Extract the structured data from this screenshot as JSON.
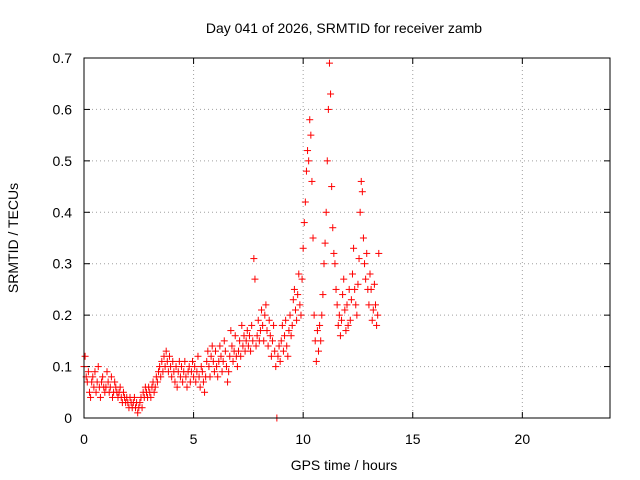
{
  "chart_data": {
    "type": "scatter",
    "title": "Day 041 of 2026, SRMTID for receiver zamb",
    "xlabel": "GPS time / hours",
    "ylabel": "SRMTID / TECUs",
    "xlim": [
      0,
      24
    ],
    "ylim": [
      0,
      0.7
    ],
    "x_ticks": [
      0,
      5,
      10,
      15,
      20
    ],
    "x_tick_labels": [
      "0",
      "5",
      "10",
      "15",
      "20"
    ],
    "y_ticks": [
      0,
      0.1,
      0.2,
      0.3,
      0.4,
      0.5,
      0.6,
      0.7
    ],
    "y_tick_labels": [
      "0",
      "0.1",
      "0.2",
      "0.3",
      "0.4",
      "0.5",
      "0.6",
      "0.7"
    ],
    "grid": true,
    "marker": "+",
    "marker_color": "#ff0000",
    "series": [
      {
        "name": "SRMTID",
        "points": [
          [
            0.0,
            0.1
          ],
          [
            0.05,
            0.12
          ],
          [
            0.1,
            0.08
          ],
          [
            0.15,
            0.07
          ],
          [
            0.2,
            0.09
          ],
          [
            0.25,
            0.05
          ],
          [
            0.3,
            0.04
          ],
          [
            0.35,
            0.07
          ],
          [
            0.4,
            0.08
          ],
          [
            0.45,
            0.06
          ],
          [
            0.5,
            0.09
          ],
          [
            0.55,
            0.05
          ],
          [
            0.6,
            0.07
          ],
          [
            0.65,
            0.1
          ],
          [
            0.7,
            0.06
          ],
          [
            0.75,
            0.04
          ],
          [
            0.8,
            0.07
          ],
          [
            0.85,
            0.08
          ],
          [
            0.9,
            0.06
          ],
          [
            0.95,
            0.05
          ],
          [
            1.0,
            0.06
          ],
          [
            1.05,
            0.09
          ],
          [
            1.1,
            0.07
          ],
          [
            1.15,
            0.05
          ],
          [
            1.2,
            0.06
          ],
          [
            1.25,
            0.08
          ],
          [
            1.3,
            0.04
          ],
          [
            1.35,
            0.05
          ],
          [
            1.4,
            0.07
          ],
          [
            1.45,
            0.06
          ],
          [
            1.5,
            0.05
          ],
          [
            1.55,
            0.04
          ],
          [
            1.6,
            0.05
          ],
          [
            1.65,
            0.06
          ],
          [
            1.7,
            0.04
          ],
          [
            1.75,
            0.03
          ],
          [
            1.8,
            0.05
          ],
          [
            1.85,
            0.04
          ],
          [
            1.9,
            0.03
          ],
          [
            1.95,
            0.04
          ],
          [
            2.0,
            0.03
          ],
          [
            2.05,
            0.02
          ],
          [
            2.1,
            0.04
          ],
          [
            2.15,
            0.03
          ],
          [
            2.2,
            0.02
          ],
          [
            2.25,
            0.03
          ],
          [
            2.3,
            0.04
          ],
          [
            2.35,
            0.02
          ],
          [
            2.4,
            0.03
          ],
          [
            2.45,
            0.01
          ],
          [
            2.5,
            0.02
          ],
          [
            2.55,
            0.03
          ],
          [
            2.6,
            0.04
          ],
          [
            2.65,
            0.02
          ],
          [
            2.7,
            0.05
          ],
          [
            2.75,
            0.04
          ],
          [
            2.8,
            0.06
          ],
          [
            2.85,
            0.05
          ],
          [
            2.9,
            0.04
          ],
          [
            2.95,
            0.06
          ],
          [
            3.0,
            0.05
          ],
          [
            3.05,
            0.04
          ],
          [
            3.1,
            0.06
          ],
          [
            3.15,
            0.07
          ],
          [
            3.2,
            0.05
          ],
          [
            3.25,
            0.06
          ],
          [
            3.3,
            0.08
          ],
          [
            3.35,
            0.07
          ],
          [
            3.4,
            0.09
          ],
          [
            3.45,
            0.1
          ],
          [
            3.5,
            0.08
          ],
          [
            3.55,
            0.11
          ],
          [
            3.6,
            0.09
          ],
          [
            3.65,
            0.12
          ],
          [
            3.7,
            0.1
          ],
          [
            3.75,
            0.13
          ],
          [
            3.8,
            0.11
          ],
          [
            3.85,
            0.09
          ],
          [
            3.9,
            0.12
          ],
          [
            3.95,
            0.1
          ],
          [
            4.0,
            0.08
          ],
          [
            4.05,
            0.11
          ],
          [
            4.1,
            0.09
          ],
          [
            4.15,
            0.07
          ],
          [
            4.2,
            0.1
          ],
          [
            4.25,
            0.06
          ],
          [
            4.3,
            0.09
          ],
          [
            4.35,
            0.11
          ],
          [
            4.4,
            0.08
          ],
          [
            4.45,
            0.1
          ],
          [
            4.5,
            0.07
          ],
          [
            4.55,
            0.09
          ],
          [
            4.6,
            0.11
          ],
          [
            4.65,
            0.08
          ],
          [
            4.7,
            0.06
          ],
          [
            4.75,
            0.09
          ],
          [
            4.8,
            0.1
          ],
          [
            4.85,
            0.07
          ],
          [
            4.9,
            0.09
          ],
          [
            4.95,
            0.11
          ],
          [
            5.0,
            0.08
          ],
          [
            5.05,
            0.1
          ],
          [
            5.1,
            0.07
          ],
          [
            5.15,
            0.09
          ],
          [
            5.2,
            0.12
          ],
          [
            5.25,
            0.08
          ],
          [
            5.3,
            0.06
          ],
          [
            5.35,
            0.1
          ],
          [
            5.4,
            0.09
          ],
          [
            5.45,
            0.07
          ],
          [
            5.5,
            0.05
          ],
          [
            5.55,
            0.08
          ],
          [
            5.6,
            0.11
          ],
          [
            5.65,
            0.13
          ],
          [
            5.7,
            0.1
          ],
          [
            5.75,
            0.08
          ],
          [
            5.8,
            0.12
          ],
          [
            5.85,
            0.14
          ],
          [
            5.9,
            0.11
          ],
          [
            5.95,
            0.09
          ],
          [
            6.0,
            0.13
          ],
          [
            6.05,
            0.1
          ],
          [
            6.1,
            0.08
          ],
          [
            6.15,
            0.11
          ],
          [
            6.2,
            0.14
          ],
          [
            6.25,
            0.12
          ],
          [
            6.3,
            0.09
          ],
          [
            6.35,
            0.11
          ],
          [
            6.4,
            0.15
          ],
          [
            6.45,
            0.13
          ],
          [
            6.5,
            0.1
          ],
          [
            6.55,
            0.07
          ],
          [
            6.6,
            0.09
          ],
          [
            6.65,
            0.12
          ],
          [
            6.7,
            0.17
          ],
          [
            6.75,
            0.14
          ],
          [
            6.8,
            0.11
          ],
          [
            6.85,
            0.13
          ],
          [
            6.9,
            0.16
          ],
          [
            6.95,
            0.12
          ],
          [
            7.0,
            0.1
          ],
          [
            7.05,
            0.13
          ],
          [
            7.1,
            0.15
          ],
          [
            7.15,
            0.12
          ],
          [
            7.2,
            0.18
          ],
          [
            7.25,
            0.14
          ],
          [
            7.3,
            0.16
          ],
          [
            7.35,
            0.13
          ],
          [
            7.4,
            0.15
          ],
          [
            7.45,
            0.17
          ],
          [
            7.5,
            0.14
          ],
          [
            7.55,
            0.16
          ],
          [
            7.6,
            0.13
          ],
          [
            7.65,
            0.18
          ],
          [
            7.7,
            0.15
          ],
          [
            7.75,
            0.31
          ],
          [
            7.8,
            0.27
          ],
          [
            7.85,
            0.14
          ],
          [
            7.9,
            0.16
          ],
          [
            7.95,
            0.19
          ],
          [
            8.0,
            0.15
          ],
          [
            8.05,
            0.17
          ],
          [
            8.1,
            0.21
          ],
          [
            8.15,
            0.18
          ],
          [
            8.2,
            0.15
          ],
          [
            8.25,
            0.2
          ],
          [
            8.3,
            0.22
          ],
          [
            8.35,
            0.17
          ],
          [
            8.4,
            0.14
          ],
          [
            8.45,
            0.19
          ],
          [
            8.5,
            0.16
          ],
          [
            8.55,
            0.12
          ],
          [
            8.6,
            0.15
          ],
          [
            8.65,
            0.18
          ],
          [
            8.7,
            0.13
          ],
          [
            8.75,
            0.1
          ],
          [
            8.8,
            0.0
          ],
          [
            8.85,
            0.12
          ],
          [
            8.9,
            0.14
          ],
          [
            8.95,
            0.11
          ],
          [
            9.0,
            0.15
          ],
          [
            9.05,
            0.18
          ],
          [
            9.1,
            0.13
          ],
          [
            9.15,
            0.16
          ],
          [
            9.2,
            0.19
          ],
          [
            9.25,
            0.14
          ],
          [
            9.3,
            0.12
          ],
          [
            9.35,
            0.17
          ],
          [
            9.4,
            0.2
          ],
          [
            9.45,
            0.16
          ],
          [
            9.5,
            0.18
          ],
          [
            9.55,
            0.23
          ],
          [
            9.6,
            0.25
          ],
          [
            9.65,
            0.21
          ],
          [
            9.7,
            0.19
          ],
          [
            9.75,
            0.24
          ],
          [
            9.8,
            0.28
          ],
          [
            9.85,
            0.22
          ],
          [
            9.9,
            0.2
          ],
          [
            9.95,
            0.27
          ],
          [
            10.0,
            0.33
          ],
          [
            10.05,
            0.38
          ],
          [
            10.1,
            0.42
          ],
          [
            10.15,
            0.48
          ],
          [
            10.2,
            0.52
          ],
          [
            10.25,
            0.5
          ],
          [
            10.3,
            0.58
          ],
          [
            10.35,
            0.55
          ],
          [
            10.4,
            0.46
          ],
          [
            10.45,
            0.35
          ],
          [
            10.5,
            0.2
          ],
          [
            10.55,
            0.15
          ],
          [
            10.6,
            0.11
          ],
          [
            10.65,
            0.17
          ],
          [
            10.7,
            0.13
          ],
          [
            10.75,
            0.18
          ],
          [
            10.8,
            0.15
          ],
          [
            10.85,
            0.2
          ],
          [
            10.9,
            0.24
          ],
          [
            10.95,
            0.3
          ],
          [
            11.0,
            0.34
          ],
          [
            11.05,
            0.4
          ],
          [
            11.1,
            0.5
          ],
          [
            11.15,
            0.6
          ],
          [
            11.2,
            0.69
          ],
          [
            11.25,
            0.63
          ],
          [
            11.3,
            0.45
          ],
          [
            11.35,
            0.37
          ],
          [
            11.4,
            0.32
          ],
          [
            11.45,
            0.3
          ],
          [
            11.5,
            0.25
          ],
          [
            11.55,
            0.22
          ],
          [
            11.6,
            0.18
          ],
          [
            11.65,
            0.2
          ],
          [
            11.7,
            0.16
          ],
          [
            11.75,
            0.19
          ],
          [
            11.8,
            0.24
          ],
          [
            11.85,
            0.27
          ],
          [
            11.9,
            0.21
          ],
          [
            11.95,
            0.17
          ],
          [
            12.0,
            0.22
          ],
          [
            12.05,
            0.18
          ],
          [
            12.1,
            0.25
          ],
          [
            12.15,
            0.19
          ],
          [
            12.2,
            0.23
          ],
          [
            12.25,
            0.28
          ],
          [
            12.3,
            0.33
          ],
          [
            12.35,
            0.25
          ],
          [
            12.4,
            0.22
          ],
          [
            12.45,
            0.2
          ],
          [
            12.5,
            0.26
          ],
          [
            12.55,
            0.31
          ],
          [
            12.6,
            0.4
          ],
          [
            12.65,
            0.46
          ],
          [
            12.7,
            0.44
          ],
          [
            12.75,
            0.35
          ],
          [
            12.8,
            0.3
          ],
          [
            12.85,
            0.27
          ],
          [
            12.9,
            0.32
          ],
          [
            12.95,
            0.25
          ],
          [
            13.0,
            0.22
          ],
          [
            13.05,
            0.28
          ],
          [
            13.1,
            0.25
          ],
          [
            13.15,
            0.19
          ],
          [
            13.2,
            0.21
          ],
          [
            13.25,
            0.26
          ],
          [
            13.3,
            0.22
          ],
          [
            13.35,
            0.18
          ],
          [
            13.4,
            0.2
          ],
          [
            13.45,
            0.32
          ]
        ]
      }
    ]
  }
}
